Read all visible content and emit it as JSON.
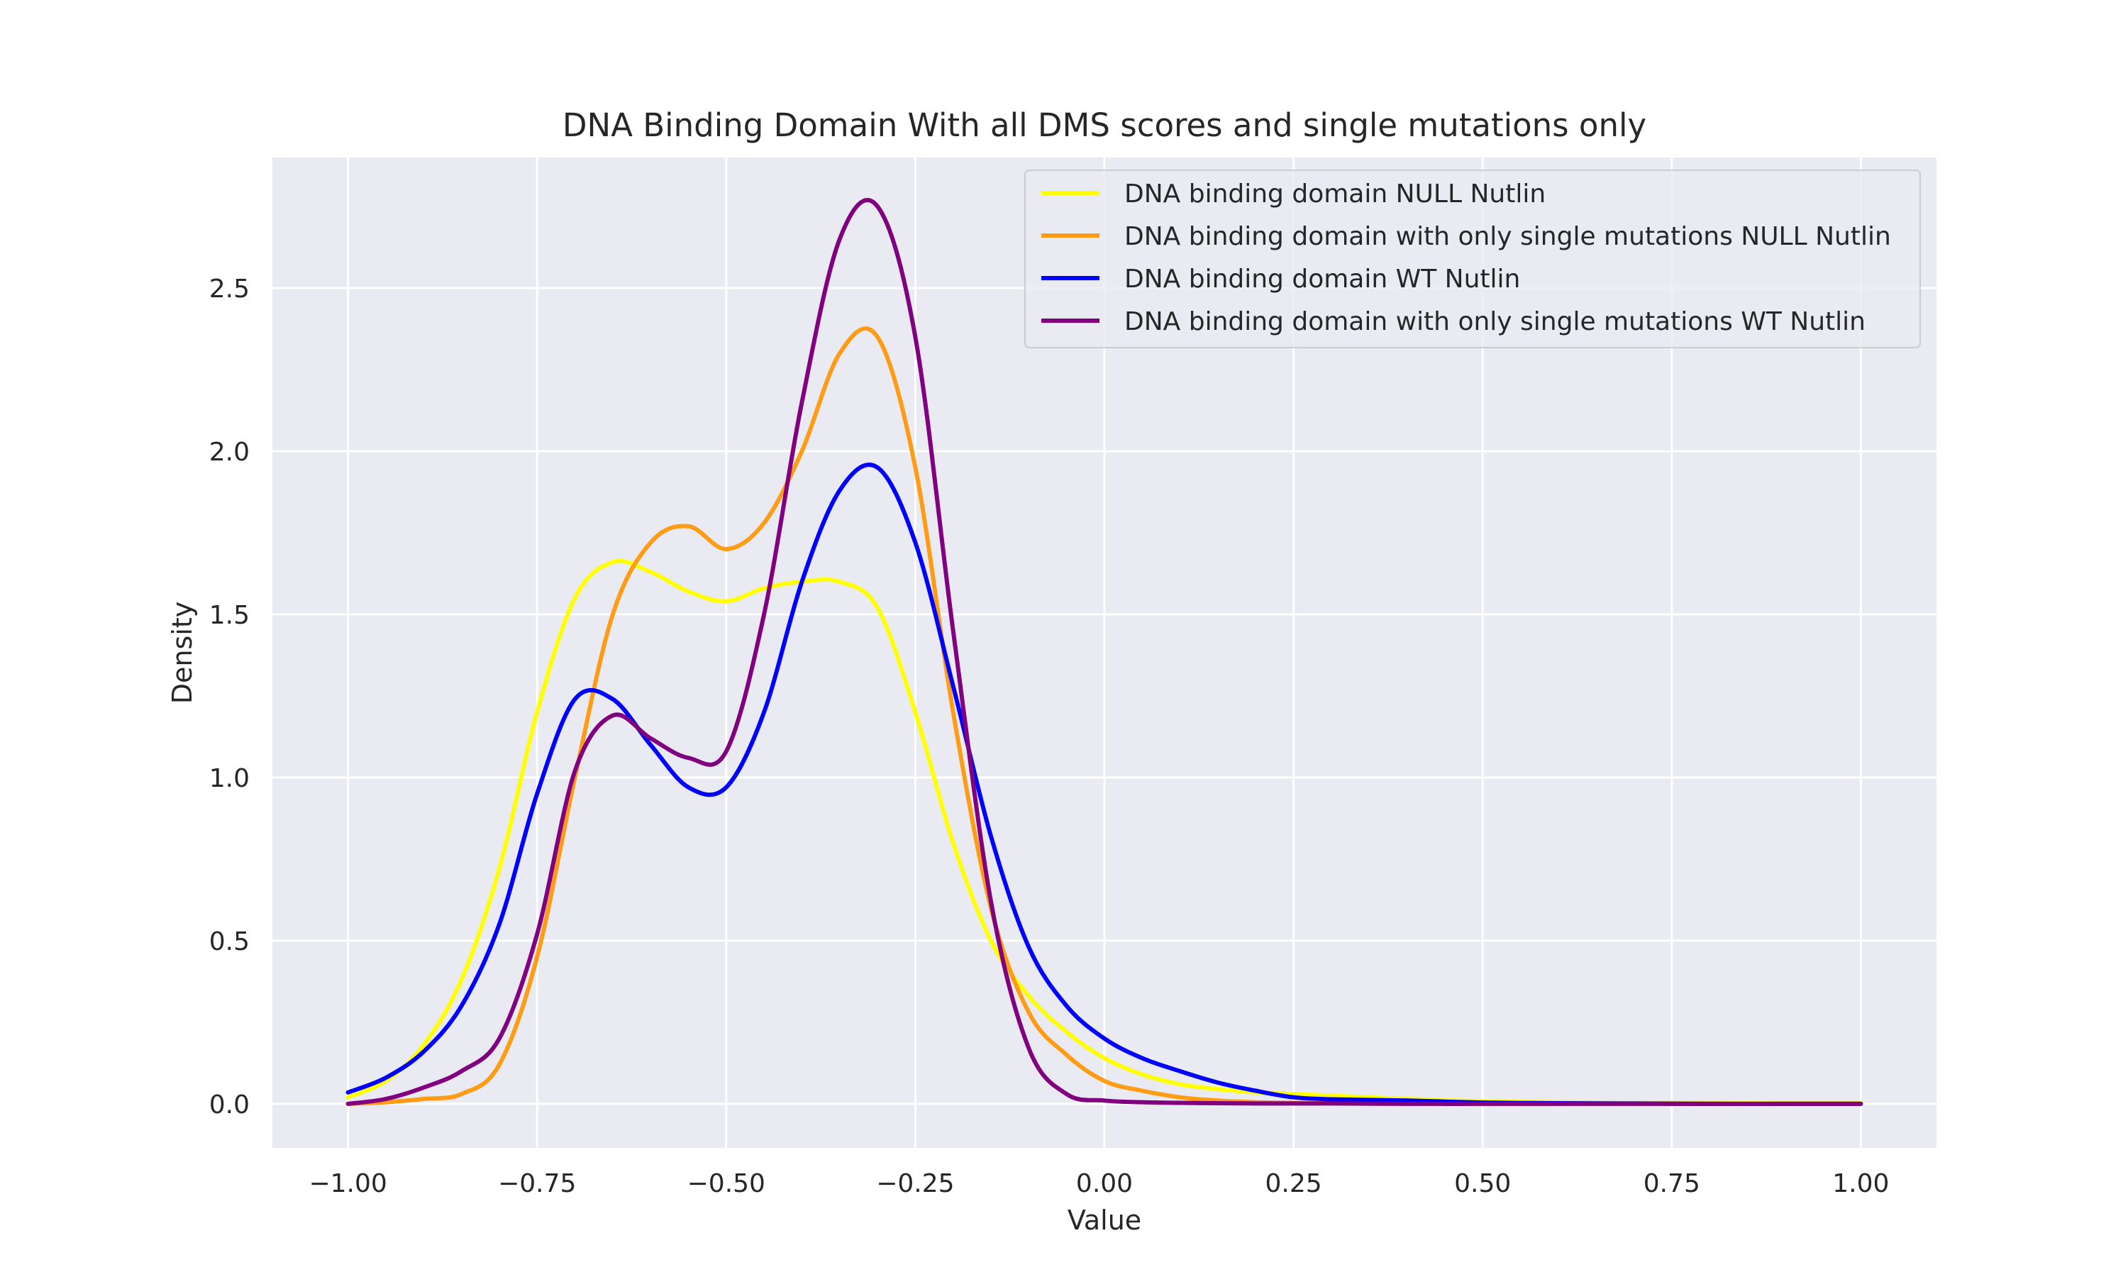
{
  "chart_data": {
    "type": "line",
    "title": "DNA Binding Domain With all DMS scores and single mutations only",
    "xlabel": "Value",
    "ylabel": "Density",
    "xlim": [
      -1.1,
      1.1
    ],
    "ylim": [
      -0.135,
      2.9
    ],
    "xticks": [
      -1.0,
      -0.75,
      -0.5,
      -0.25,
      0.0,
      0.25,
      0.5,
      0.75,
      1.0
    ],
    "xtick_labels": [
      "−1.00",
      "−0.75",
      "−0.50",
      "−0.25",
      "0.00",
      "0.25",
      "0.50",
      "0.75",
      "1.00"
    ],
    "yticks": [
      0.0,
      0.5,
      1.0,
      1.5,
      2.0,
      2.5
    ],
    "ytick_labels": [
      "0.0",
      "0.5",
      "1.0",
      "1.5",
      "2.0",
      "2.5"
    ],
    "grid": true,
    "legend_position": "top-right",
    "x": [
      -1.0,
      -0.95,
      -0.9,
      -0.85,
      -0.8,
      -0.75,
      -0.7,
      -0.65,
      -0.6,
      -0.55,
      -0.5,
      -0.45,
      -0.4,
      -0.35,
      -0.3,
      -0.25,
      -0.2,
      -0.15,
      -0.1,
      -0.05,
      0.0,
      0.05,
      0.1,
      0.15,
      0.2,
      0.25,
      0.3,
      0.4,
      0.5,
      0.6,
      0.7,
      0.8,
      0.9,
      1.0
    ],
    "series": [
      {
        "name": "DNA binding domain NULL Nutlin",
        "color": "#ffff00",
        "values": [
          0.02,
          0.07,
          0.18,
          0.38,
          0.72,
          1.2,
          1.55,
          1.66,
          1.63,
          1.57,
          1.54,
          1.58,
          1.6,
          1.6,
          1.52,
          1.2,
          0.8,
          0.5,
          0.33,
          0.22,
          0.14,
          0.09,
          0.06,
          0.045,
          0.035,
          0.03,
          0.025,
          0.015,
          0.008,
          0.005,
          0.004,
          0.003,
          0.002,
          0.002
        ]
      },
      {
        "name": "DNA binding domain with only single mutations NULL Nutlin",
        "color": "#ff9c14",
        "values": [
          0.0,
          0.005,
          0.015,
          0.03,
          0.12,
          0.45,
          1.0,
          1.5,
          1.72,
          1.77,
          1.7,
          1.78,
          2.0,
          2.3,
          2.35,
          1.95,
          1.2,
          0.6,
          0.28,
          0.15,
          0.07,
          0.04,
          0.02,
          0.01,
          0.005,
          0.003,
          0.002,
          0.001,
          0.0,
          0.0,
          0.0,
          0.0,
          0.0,
          0.0
        ]
      },
      {
        "name": "DNA binding domain WT Nutlin",
        "color": "#0000ff",
        "values": [
          0.035,
          0.08,
          0.16,
          0.3,
          0.55,
          0.95,
          1.24,
          1.24,
          1.1,
          0.97,
          0.97,
          1.2,
          1.6,
          1.88,
          1.95,
          1.72,
          1.28,
          0.82,
          0.48,
          0.3,
          0.2,
          0.14,
          0.1,
          0.065,
          0.04,
          0.02,
          0.014,
          0.01,
          0.004,
          0.002,
          0.001,
          0.0,
          0.0,
          0.0
        ]
      },
      {
        "name": "DNA binding domain with only single mutations WT Nutlin",
        "color": "#800080",
        "values": [
          0.0,
          0.015,
          0.05,
          0.1,
          0.2,
          0.52,
          1.02,
          1.19,
          1.12,
          1.06,
          1.08,
          1.5,
          2.15,
          2.65,
          2.75,
          2.35,
          1.45,
          0.62,
          0.17,
          0.03,
          0.01,
          0.005,
          0.003,
          0.002,
          0.001,
          0.001,
          0.001,
          0.0,
          0.0,
          0.0,
          0.0,
          0.0,
          0.0,
          0.0
        ]
      }
    ]
  }
}
